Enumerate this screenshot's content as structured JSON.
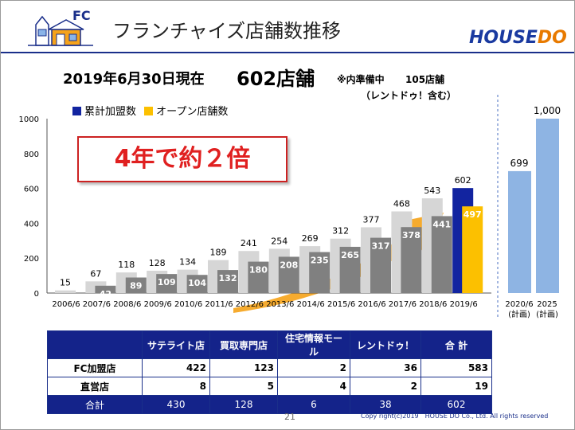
{
  "header": {
    "logo_text": "FC",
    "title": "フランチャイズ店舗数推移",
    "brand_a": "HOUSE",
    "brand_b": "DO"
  },
  "headline": {
    "date": "2019年6月30日現在",
    "count": "602店舗",
    "note_prefix": "※内準備中",
    "note_count": "105店舗",
    "note_sub": "（レントドゥ！含む）"
  },
  "callout": "4年で約２倍",
  "colors": {
    "cumulative": "#1224a0",
    "open": "#fcc000",
    "past_cumulative": "#d6d6d6",
    "past_open": "#808080",
    "plan": "#8eb4e3",
    "arrow": "#f5a623",
    "table_header": "#14238a"
  },
  "chart_data": {
    "type": "bar",
    "legend": [
      "累計加盟数",
      "オープン店舗数"
    ],
    "legend_position": "top-left",
    "ylim": [
      0,
      1000
    ],
    "yticks": [
      "0",
      "200",
      "400",
      "600",
      "800",
      "1000"
    ],
    "categories": [
      "2006/6",
      "2007/6",
      "2008/6",
      "2009/6",
      "2010/6",
      "2011/6",
      "2012/6",
      "2013/6",
      "2014/6",
      "2015/6",
      "2016/6",
      "2017/6",
      "2018/6",
      "2019/6"
    ],
    "series": [
      {
        "name": "累計加盟数",
        "values": [
          15,
          67,
          118,
          128,
          134,
          189,
          241,
          254,
          269,
          312,
          377,
          468,
          543,
          602
        ]
      },
      {
        "name": "オープン店舗数",
        "values": [
          null,
          42,
          89,
          109,
          104,
          132,
          180,
          208,
          235,
          265,
          317,
          378,
          441,
          497
        ]
      }
    ],
    "plan_categories": [
      {
        "top": "2020/6",
        "bottom": "(計画)"
      },
      {
        "top": "2025",
        "bottom": "(計画)"
      }
    ],
    "plan_values": [
      699,
      1000
    ],
    "plan_labels": [
      "699",
      "1,000"
    ]
  },
  "table": {
    "corner": "",
    "columns": [
      "サテライト店",
      "買取専門店",
      "住宅情報モール",
      "レントドゥ！",
      "合 計"
    ],
    "rows": [
      {
        "label": "FC加盟店",
        "values": [
          "422",
          "123",
          "2",
          "36",
          "583"
        ]
      },
      {
        "label": "直営店",
        "values": [
          "8",
          "5",
          "4",
          "2",
          "19"
        ]
      }
    ],
    "total": {
      "label": "合計",
      "values": [
        "430",
        "128",
        "6",
        "38",
        "602"
      ]
    }
  },
  "footer": {
    "page": "21",
    "copyright": "Copy right(c)2019　HOUSE DO Co., Ltd. All rights reserved"
  }
}
